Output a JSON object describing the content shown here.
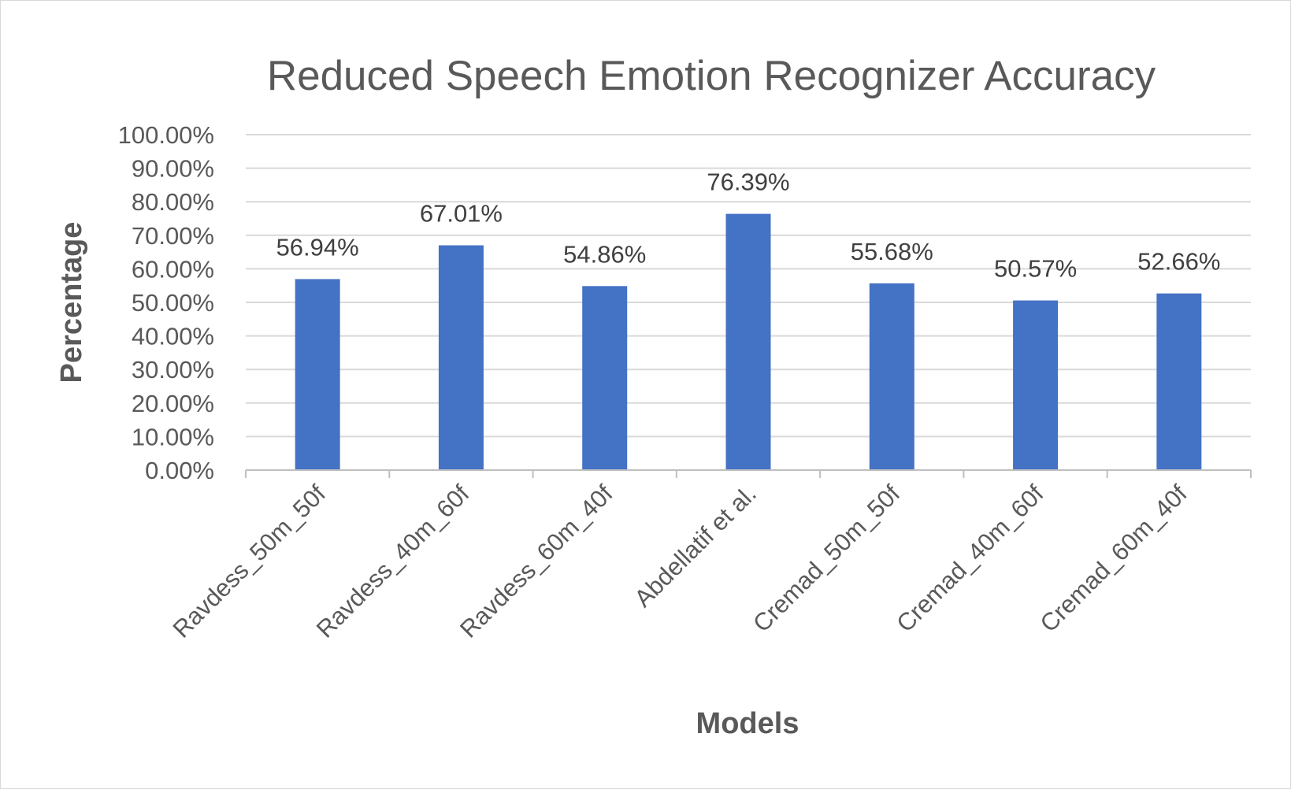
{
  "chart_data": {
    "type": "bar",
    "title": "Reduced Speech Emotion Recognizer Accuracy",
    "xlabel": "Models",
    "ylabel": "Percentage",
    "categories": [
      "Ravdess_50m_50f",
      "Ravdess_40m_60f",
      "Ravdess_60m_40f",
      "Abdellatif et al.",
      "Cremad_50m_50f",
      "Cremad_40m_60f",
      "Cremad_60m_40f"
    ],
    "values": [
      56.94,
      67.01,
      54.86,
      76.39,
      55.68,
      50.57,
      52.66
    ],
    "data_labels": [
      "56.94%",
      "67.01%",
      "54.86%",
      "76.39%",
      "55.68%",
      "50.57%",
      "52.66%"
    ],
    "ylim": [
      0,
      100
    ],
    "yticks": [
      0,
      10,
      20,
      30,
      40,
      50,
      60,
      70,
      80,
      90,
      100
    ],
    "ytick_labels": [
      "0.00%",
      "10.00%",
      "20.00%",
      "30.00%",
      "40.00%",
      "50.00%",
      "60.00%",
      "70.00%",
      "80.00%",
      "90.00%",
      "100.00%"
    ],
    "grid": true,
    "legend": "none",
    "bar_color": "#4472C4"
  }
}
